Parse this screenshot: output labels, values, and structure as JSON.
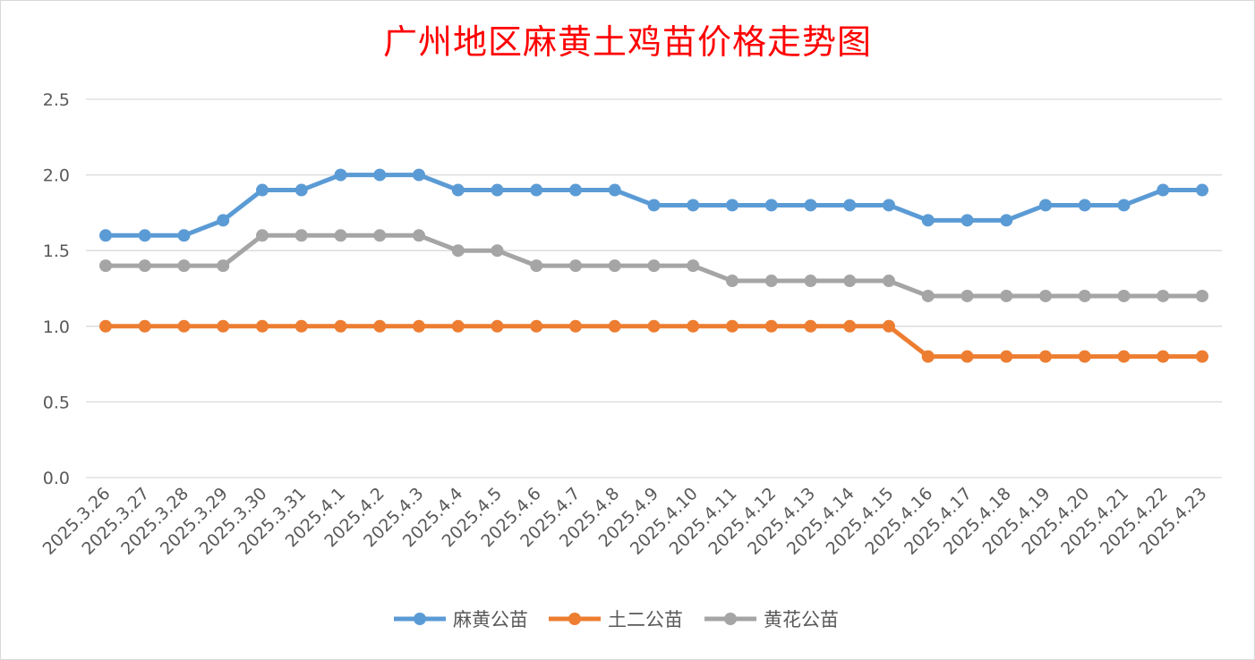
{
  "chart_data": {
    "type": "line",
    "title": "广州地区麻黄土鸡苗价格走势图",
    "xlabel": "",
    "ylabel": "",
    "ylim": [
      0,
      2.5
    ],
    "yticks": [
      "0.0",
      "0.5",
      "1.0",
      "1.5",
      "2.0",
      "2.5"
    ],
    "grid": true,
    "legend_position": "bottom",
    "categories": [
      "2025.3.26",
      "2025.3.27",
      "2025.3.28",
      "2025.3.29",
      "2025.3.30",
      "2025.3.31",
      "2025.4.1",
      "2025.4.2",
      "2025.4.3",
      "2025.4.4",
      "2025.4.5",
      "2025.4.6",
      "2025.4.7",
      "2025.4.8",
      "2025.4.9",
      "2025.4.10",
      "2025.4.11",
      "2025.4.12",
      "2025.4.13",
      "2025.4.14",
      "2025.4.15",
      "2025.4.16",
      "2025.4.17",
      "2025.4.18",
      "2025.4.19",
      "2025.4.20",
      "2025.4.21",
      "2025.4.22",
      "2025.4.23"
    ],
    "series": [
      {
        "name": "麻黄公苗",
        "color": "#5b9bd5",
        "values": [
          1.6,
          1.6,
          1.6,
          1.7,
          1.9,
          1.9,
          2.0,
          2.0,
          2.0,
          1.9,
          1.9,
          1.9,
          1.9,
          1.9,
          1.8,
          1.8,
          1.8,
          1.8,
          1.8,
          1.8,
          1.8,
          1.7,
          1.7,
          1.7,
          1.8,
          1.8,
          1.8,
          1.9,
          1.9
        ]
      },
      {
        "name": "土二公苗",
        "color": "#ed7d31",
        "values": [
          1.0,
          1.0,
          1.0,
          1.0,
          1.0,
          1.0,
          1.0,
          1.0,
          1.0,
          1.0,
          1.0,
          1.0,
          1.0,
          1.0,
          1.0,
          1.0,
          1.0,
          1.0,
          1.0,
          1.0,
          1.0,
          0.8,
          0.8,
          0.8,
          0.8,
          0.8,
          0.8,
          0.8,
          0.8
        ]
      },
      {
        "name": "黄花公苗",
        "color": "#a5a5a5",
        "values": [
          1.4,
          1.4,
          1.4,
          1.4,
          1.6,
          1.6,
          1.6,
          1.6,
          1.6,
          1.5,
          1.5,
          1.4,
          1.4,
          1.4,
          1.4,
          1.4,
          1.3,
          1.3,
          1.3,
          1.3,
          1.3,
          1.2,
          1.2,
          1.2,
          1.2,
          1.2,
          1.2,
          1.2,
          1.2
        ]
      }
    ]
  }
}
